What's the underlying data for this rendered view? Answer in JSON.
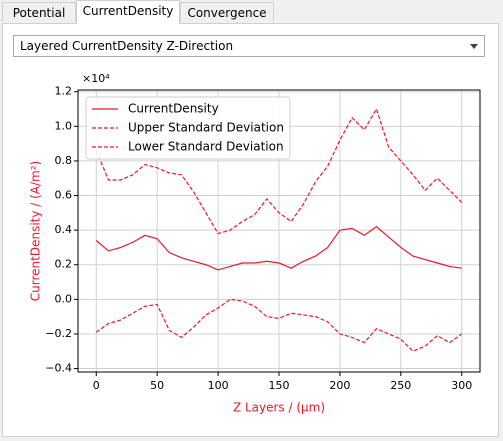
{
  "tabs": [
    "Potential",
    "CurrentDensity",
    "Convergence"
  ],
  "active_tab": 1,
  "dropdown": "Layered CurrentDensity Z-Direction",
  "chart_data": {
    "type": "line",
    "x_label": "Z Layers / (μm)",
    "y_label": "CurrentDensity / (A/m²)",
    "y_offset_label": "×10⁴",
    "axis_label_color": "#e8192c",
    "grid": true,
    "legend": "upper left",
    "xlim": [
      -15,
      315
    ],
    "ylim": [
      -0.42,
      1.21
    ],
    "xticks": [
      0,
      50,
      100,
      150,
      200,
      250,
      300
    ],
    "yticks": [
      {
        "value": -0.4,
        "label": "−0.4"
      },
      {
        "value": -0.2,
        "label": "−0.2"
      },
      {
        "value": 0.0,
        "label": "0.0"
      },
      {
        "value": 0.2,
        "label": "0.2"
      },
      {
        "value": 0.4,
        "label": "0.4"
      },
      {
        "value": 0.6,
        "label": "0.6"
      },
      {
        "value": 0.8,
        "label": "0.8"
      },
      {
        "value": 1.0,
        "label": "1.0"
      },
      {
        "value": 1.2,
        "label": "1.2"
      }
    ],
    "x": [
      0,
      10,
      20,
      30,
      40,
      50,
      60,
      70,
      80,
      90,
      100,
      110,
      120,
      130,
      140,
      150,
      160,
      170,
      180,
      190,
      200,
      210,
      220,
      230,
      240,
      250,
      260,
      270,
      280,
      290,
      300
    ],
    "series": [
      {
        "name": "CurrentDensity",
        "color": "#e8192c",
        "linestyle": "solid",
        "values": [
          0.34,
          0.28,
          0.3,
          0.33,
          0.37,
          0.35,
          0.27,
          0.24,
          0.22,
          0.2,
          0.17,
          0.19,
          0.21,
          0.21,
          0.22,
          0.21,
          0.18,
          0.22,
          0.25,
          0.3,
          0.4,
          0.41,
          0.37,
          0.42,
          0.36,
          0.3,
          0.25,
          0.23,
          0.21,
          0.19,
          0.18
        ]
      },
      {
        "name": "Upper Standard Deviation",
        "color": "#e8192c",
        "linestyle": "dashed",
        "values": [
          0.86,
          0.69,
          0.69,
          0.72,
          0.78,
          0.76,
          0.73,
          0.72,
          0.62,
          0.5,
          0.38,
          0.4,
          0.45,
          0.49,
          0.58,
          0.5,
          0.45,
          0.55,
          0.68,
          0.77,
          0.92,
          1.05,
          0.98,
          1.1,
          0.88,
          0.8,
          0.72,
          0.63,
          0.7,
          0.63,
          0.56
        ]
      },
      {
        "name": "Lower Standard Deviation",
        "color": "#e8192c",
        "linestyle": "dashed",
        "values": [
          -0.19,
          -0.14,
          -0.12,
          -0.08,
          -0.04,
          -0.03,
          -0.18,
          -0.22,
          -0.16,
          -0.09,
          -0.05,
          0.0,
          -0.01,
          -0.04,
          -0.1,
          -0.11,
          -0.08,
          -0.09,
          -0.1,
          -0.13,
          -0.2,
          -0.22,
          -0.25,
          -0.17,
          -0.2,
          -0.23,
          -0.3,
          -0.27,
          -0.21,
          -0.25,
          -0.2
        ]
      }
    ]
  }
}
